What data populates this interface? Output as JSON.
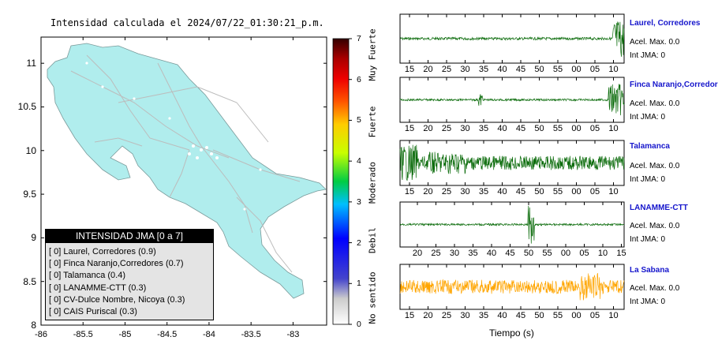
{
  "map": {
    "title": "Intensidad calculada el 2024/07/22_01:30:21_p.m.",
    "x_ticks": [
      "-86",
      "-85.5",
      "-85",
      "-84.5",
      "-84",
      "-83.5",
      "-83"
    ],
    "y_ticks": [
      "11",
      "10.5",
      "10",
      "9.5",
      "9",
      "8.5",
      "8"
    ]
  },
  "legend": {
    "title": "INTENSIDAD JMA [0 a 7]",
    "items": [
      "[ 0]  Laurel, Corredores (0.9)",
      "[ 0]  Finca Naranjo,Corredores (0.7)",
      "[ 0]  Talamanca (0.4)",
      "[ 0]  LANAMME-CTT (0.3)",
      "[ 0]  CV-Dulce Nombre, Nicoya (0.3)",
      "[ 0]  CAIS Puriscal (0.3)"
    ]
  },
  "colorbar": {
    "ticks": [
      "7",
      "6",
      "5",
      "4",
      "3",
      "2",
      "1",
      "0"
    ],
    "categories": [
      "Muy Fuerte",
      "Fuerte",
      "Moderado",
      "Debil",
      "No sentido"
    ]
  },
  "stations": [
    {
      "name": "Laurel, Corredores",
      "acel": "Acel. Max. 0.0",
      "int": "Int JMA: 0",
      "ticks": [
        "15",
        "20",
        "25",
        "30",
        "35",
        "40",
        "45",
        "50",
        "55",
        "00",
        "05",
        "10"
      ]
    },
    {
      "name": "Finca Naranjo,Corredores",
      "acel": "Acel. Max. 0.0",
      "int": "Int JMA: 0",
      "ticks": [
        "15",
        "20",
        "25",
        "30",
        "35",
        "40",
        "45",
        "50",
        "55",
        "00",
        "05",
        "10"
      ]
    },
    {
      "name": "Talamanca",
      "acel": "Acel. Max. 0.0",
      "int": "Int JMA: 0",
      "ticks": [
        "15",
        "20",
        "25",
        "30",
        "35",
        "40",
        "45",
        "50",
        "55",
        "00",
        "05",
        "10"
      ]
    },
    {
      "name": "LANAMME-CTT",
      "acel": "Acel. Max. 0.0",
      "int": "Int JMA: 0",
      "ticks": [
        "20",
        "25",
        "30",
        "35",
        "40",
        "45",
        "50",
        "55",
        "00",
        "05",
        "10",
        "15"
      ]
    },
    {
      "name": "La Sabana",
      "acel": "Acel. Max. 0.0",
      "int": "Int JMA: 0",
      "ticks": [
        "15",
        "20",
        "25",
        "30",
        "35",
        "40",
        "45",
        "50",
        "55",
        "00",
        "05",
        "10"
      ]
    }
  ],
  "xlabel": "Tiempo (s)",
  "colors": {
    "land": "#b0eded",
    "trace_green": "#0a6b0a",
    "trace_orange": "#ffa500",
    "station_name": "#1616cc"
  },
  "chart_data": {
    "type": "map",
    "xlim": [
      -86,
      -82.6
    ],
    "ylim": [
      8,
      11.3
    ],
    "colorbar_range": [
      0,
      7
    ]
  }
}
